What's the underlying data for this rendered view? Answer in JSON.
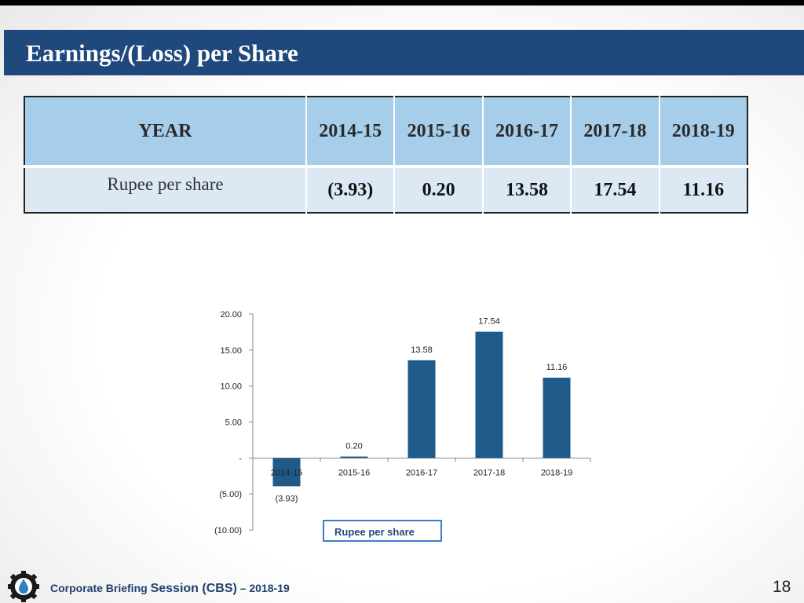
{
  "slide": {
    "title": "Earnings/(Loss) per Share",
    "page_number": "18"
  },
  "table": {
    "header_label": "YEAR",
    "years": [
      "2014-15",
      "2015-16",
      "2016-17",
      "2017-18",
      "2018-19"
    ],
    "row_label": "Rupee per share",
    "values": [
      "(3.93)",
      "0.20",
      "13.58",
      "17.54",
      "11.16"
    ]
  },
  "chart_data": {
    "type": "bar",
    "categories": [
      "2014-15",
      "2015-16",
      "2016-17",
      "2017-18",
      "2018-19"
    ],
    "series": [
      {
        "name": "Rupee per share",
        "values": [
          -3.93,
          0.2,
          13.58,
          17.54,
          11.16
        ]
      }
    ],
    "data_labels": [
      "(3.93)",
      "0.20",
      "13.58",
      "17.54",
      "11.16"
    ],
    "y_ticks": [
      20,
      15,
      10,
      5,
      0,
      -5,
      -10
    ],
    "y_tick_labels": [
      "20.00",
      "15.00",
      "10.00",
      "5.00",
      "-",
      "(5.00)",
      "(10.00)"
    ],
    "ylim": [
      -10,
      20
    ],
    "bar_color": "#1f5b8a",
    "grid": false,
    "legend_position": "bottom"
  },
  "footer": {
    "text_a": "Corporate Briefing ",
    "text_b": "Session (CBS)",
    "text_c": " – 2018-19",
    "logo_icon": "gear-drop-logo-icon"
  },
  "colors": {
    "title_bar": "#1f497d",
    "table_header": "#a6cde9",
    "table_row": "#dce9f5"
  }
}
